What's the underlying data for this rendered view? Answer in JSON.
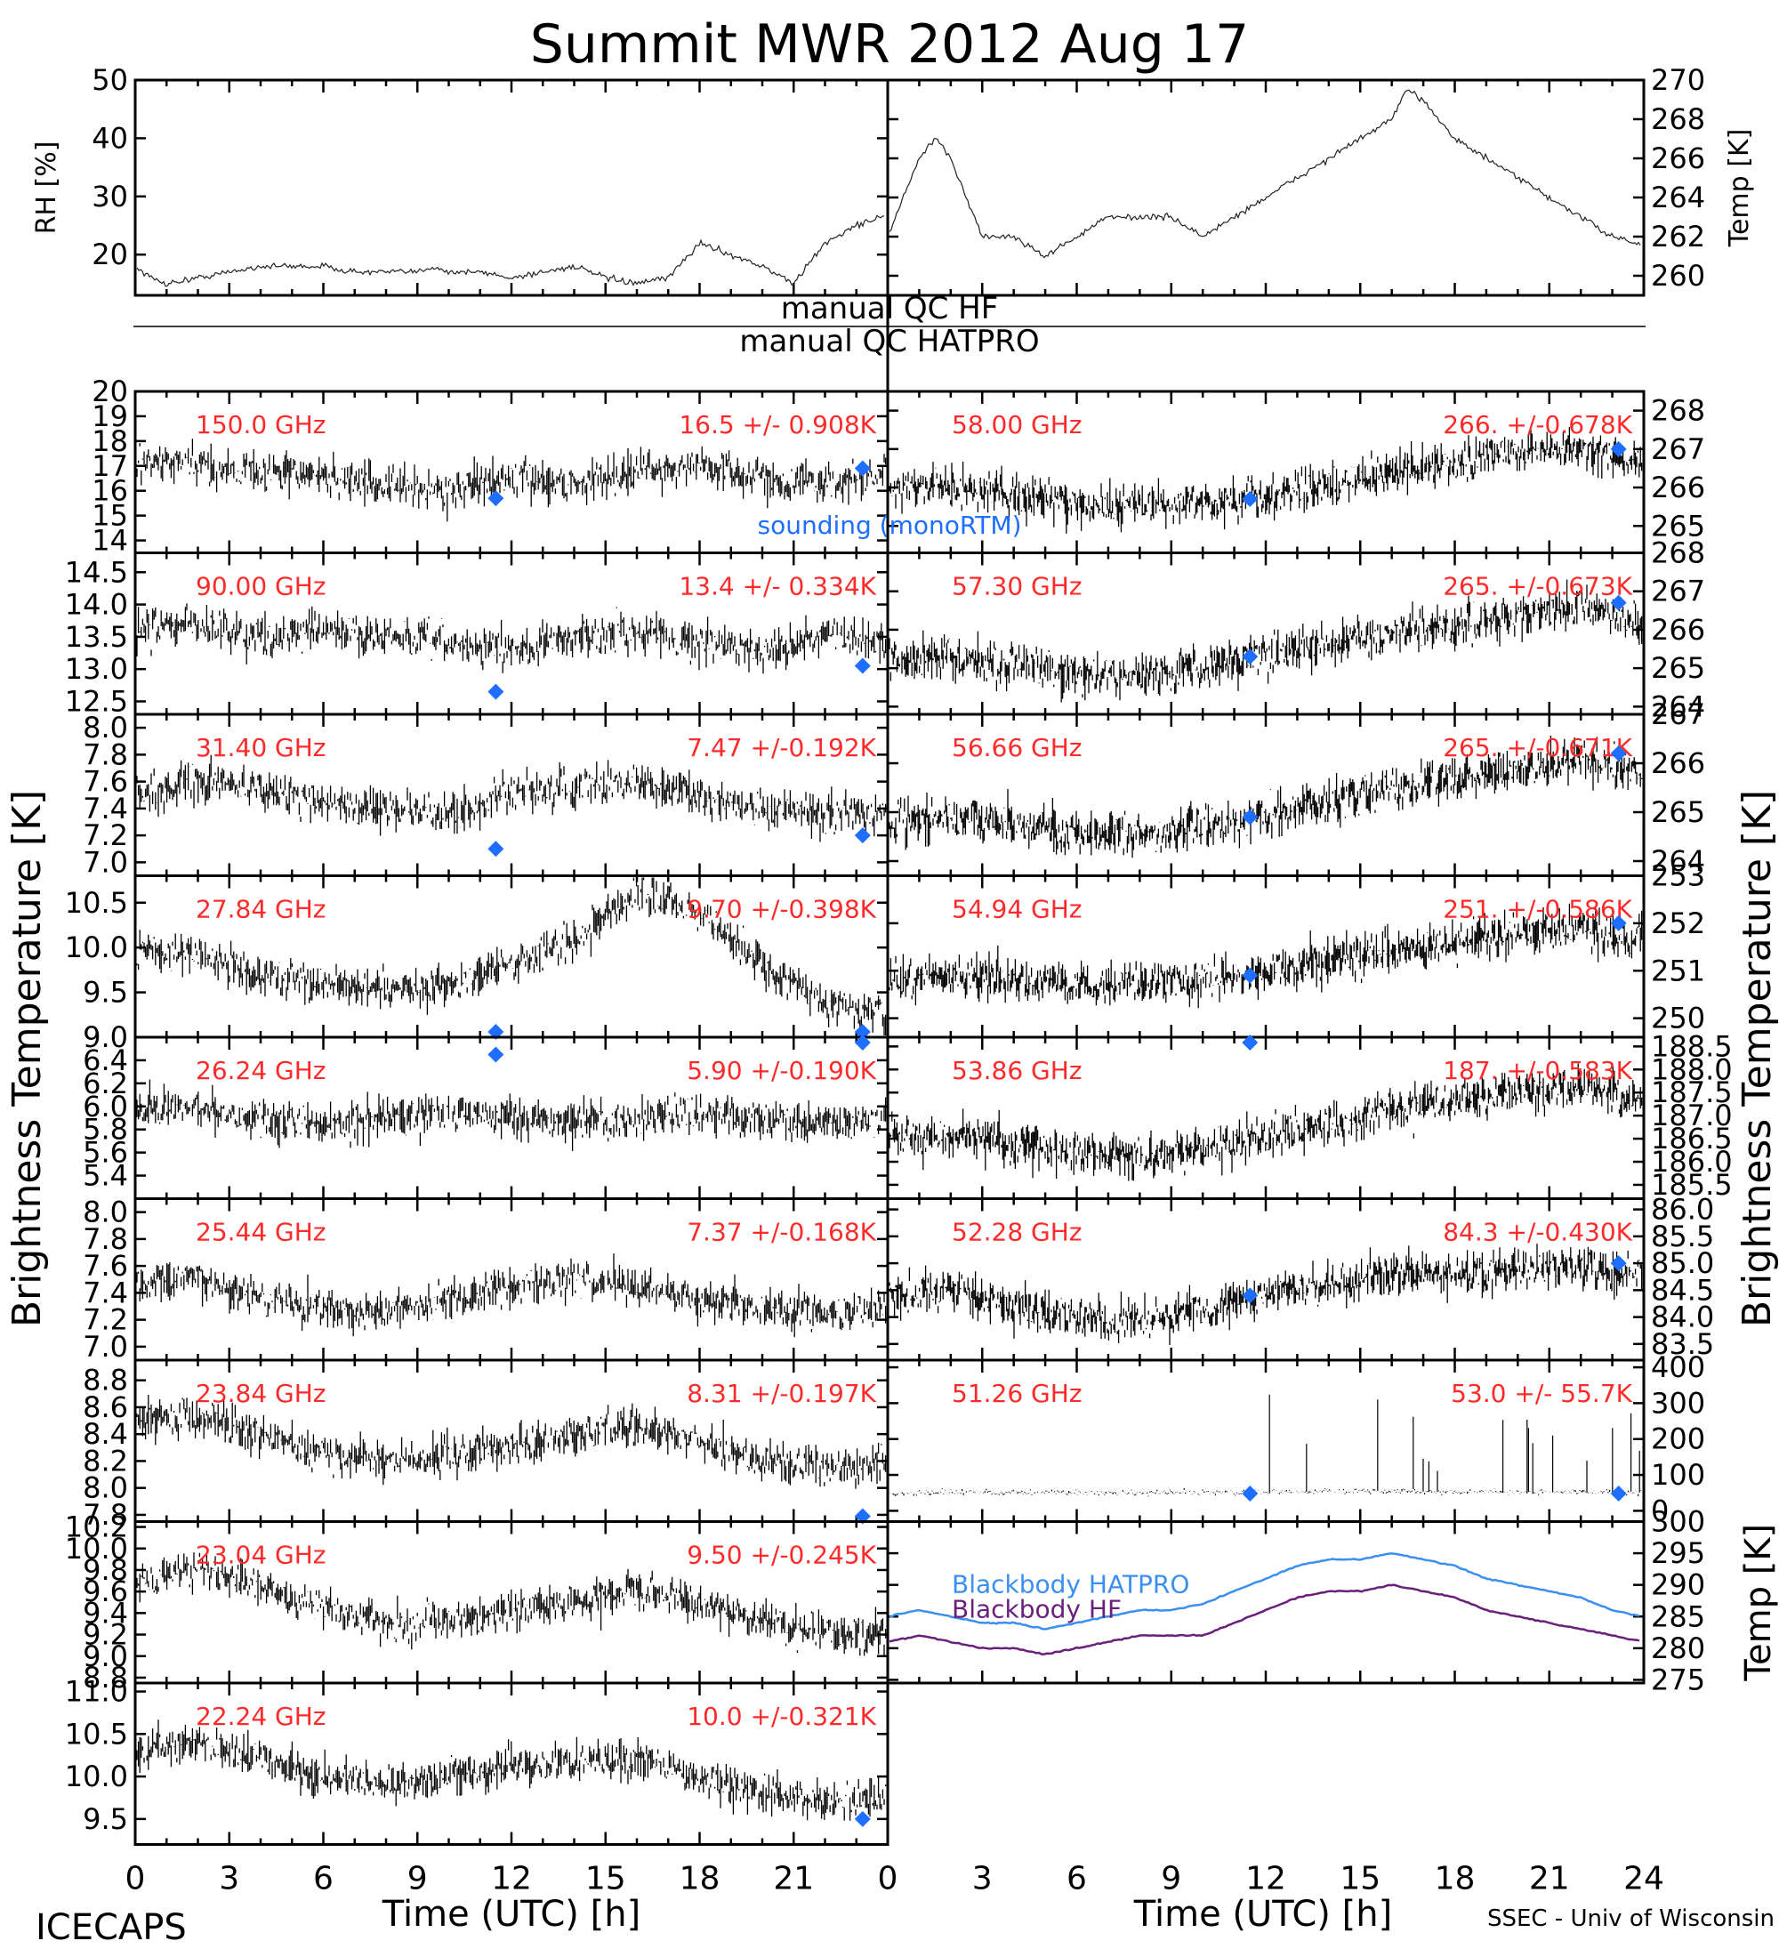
{
  "figure": {
    "title": "Summit MWR 2012 Aug 17",
    "footer_left": "ICECAPS",
    "footer_right": "SSEC - Univ of Wisconsin",
    "xlabel": "Time (UTC) [h]",
    "left_ylabel": "Brightness Temperature [K]",
    "right_ylabel": "Brightness Temperature [K]",
    "qc_hf": "manual QC HF",
    "qc_hatpro": "manual QC HATPRO",
    "sounding_label": "sounding (monoRTM)",
    "colors": {
      "trace": "#000000",
      "label": "#ff2a2a",
      "sounding": "#1e6fff",
      "bb_hatpro": "#3a8ff0",
      "bb_hf": "#6a1f7a"
    }
  },
  "chart_data": [
    {
      "type": "line",
      "panel": "rh",
      "ylabel": "RH [%]",
      "ylim": [
        13,
        50
      ],
      "yticks": [
        "20",
        "30",
        "40",
        "50"
      ],
      "xlim": [
        0,
        24
      ],
      "series": [
        {
          "x": [
            0,
            0.5,
            1,
            2,
            3,
            4,
            5,
            6,
            7,
            8,
            9,
            9.5,
            10,
            11,
            12,
            13,
            14,
            15,
            16,
            17,
            18,
            19,
            20,
            21,
            22,
            23,
            24
          ],
          "values": [
            18,
            16,
            15,
            16,
            17,
            18,
            18,
            18,
            17,
            17,
            17,
            18,
            17,
            17,
            16,
            17,
            18,
            16,
            15,
            16,
            22,
            20,
            18,
            15,
            22,
            25,
            27
          ]
        }
      ]
    },
    {
      "type": "line",
      "panel": "temp",
      "ylabel": "Temp [K]",
      "ylim": [
        259,
        270
      ],
      "yticks": [
        "260",
        "262",
        "264",
        "266",
        "268",
        "270"
      ],
      "xlim": [
        0,
        24
      ],
      "series": [
        {
          "x": [
            0,
            0.5,
            1,
            1.5,
            2,
            3,
            4,
            5,
            6,
            7,
            8,
            9,
            10,
            11,
            12,
            13,
            14,
            15,
            16,
            16.5,
            17,
            18,
            19,
            20,
            21,
            22,
            23,
            24
          ],
          "values": [
            262,
            264,
            266,
            267,
            266,
            262,
            262,
            261,
            262,
            263,
            263,
            263,
            262,
            263,
            264,
            265,
            266,
            267,
            268,
            269.5,
            269,
            267,
            266,
            265,
            264,
            263,
            262,
            261.5
          ]
        }
      ]
    },
    {
      "type": "scatter",
      "side": "left",
      "freq": "150.0 GHz",
      "stats": "16.5 +/- 0.908K",
      "ylim": [
        13.5,
        20
      ],
      "yticks": [
        "14",
        "15",
        "16",
        "17",
        "18",
        "19",
        "20"
      ],
      "points": [
        17.2,
        17.0,
        16.8,
        16.6,
        16.2,
        16.0,
        16.5,
        16.3,
        16.8,
        17.0,
        16.5,
        16.3,
        16.6
      ],
      "sounding": [
        [
          11.5,
          15.7
        ],
        [
          23.2,
          16.9
        ]
      ]
    },
    {
      "type": "scatter",
      "side": "left",
      "freq": "90.00 GHz",
      "stats": "13.4 +/- 0.334K",
      "ylim": [
        12.3,
        14.8
      ],
      "yticks": [
        "12.5",
        "13.0",
        "13.5",
        "14.0",
        "14.5"
      ],
      "points": [
        13.6,
        13.7,
        13.5,
        13.6,
        13.5,
        13.4,
        13.3,
        13.5,
        13.6,
        13.4,
        13.3,
        13.5,
        13.4
      ],
      "sounding": [
        [
          11.5,
          12.65
        ],
        [
          23.2,
          13.05
        ]
      ]
    },
    {
      "type": "scatter",
      "side": "left",
      "freq": "31.40 GHz",
      "stats": "7.47 +/-0.192K",
      "ylim": [
        6.9,
        8.1
      ],
      "yticks": [
        "7.0",
        "7.2",
        "7.4",
        "7.6",
        "7.8",
        "8.0"
      ],
      "points": [
        7.5,
        7.6,
        7.55,
        7.45,
        7.4,
        7.35,
        7.5,
        7.55,
        7.6,
        7.5,
        7.4,
        7.35,
        7.4
      ],
      "sounding": [
        [
          11.5,
          7.1
        ],
        [
          23.2,
          7.2
        ]
      ]
    },
    {
      "type": "scatter",
      "side": "left",
      "freq": "27.84 GHz",
      "stats": "9.70 +/-0.398K",
      "ylim": [
        9.0,
        10.8
      ],
      "yticks": [
        "9.0",
        "9.5",
        "10.0",
        "10.5"
      ],
      "points": [
        10.0,
        9.9,
        9.7,
        9.6,
        9.5,
        9.6,
        9.8,
        10.1,
        10.6,
        10.4,
        9.8,
        9.4,
        9.2
      ],
      "sounding": [
        [
          11.5,
          8.85
        ],
        [
          23.2,
          8.6
        ]
      ]
    },
    {
      "type": "scatter",
      "side": "left",
      "freq": "26.24 GHz",
      "stats": "5.90 +/-0.190K",
      "ylim": [
        5.2,
        6.6
      ],
      "yticks": [
        "5.4",
        "5.6",
        "5.8",
        "6.0",
        "6.2",
        "6.4"
      ],
      "points": [
        5.95,
        6.0,
        5.9,
        5.85,
        5.9,
        5.95,
        5.9,
        5.85,
        5.9,
        5.95,
        5.9,
        5.85,
        5.9
      ],
      "sounding": [
        [
          11.5,
          6.45
        ],
        [
          23.2,
          6.6
        ]
      ]
    },
    {
      "type": "scatter",
      "side": "left",
      "freq": "25.44 GHz",
      "stats": "7.37 +/-0.168K",
      "ylim": [
        6.9,
        8.1
      ],
      "yticks": [
        "7.0",
        "7.2",
        "7.4",
        "7.6",
        "7.8",
        "8.0"
      ],
      "points": [
        7.45,
        7.5,
        7.35,
        7.3,
        7.25,
        7.35,
        7.45,
        7.5,
        7.45,
        7.35,
        7.3,
        7.25,
        7.3
      ],
      "sounding": []
    },
    {
      "type": "scatter",
      "side": "left",
      "freq": "23.84 GHz",
      "stats": "8.31 +/-0.197K",
      "ylim": [
        7.75,
        8.95
      ],
      "yticks": [
        "7.8",
        "8.0",
        "8.2",
        "8.4",
        "8.6",
        "8.8"
      ],
      "points": [
        8.5,
        8.55,
        8.4,
        8.25,
        8.2,
        8.25,
        8.3,
        8.4,
        8.45,
        8.35,
        8.2,
        8.15,
        8.2
      ],
      "sounding": [
        [
          23.2,
          7.78
        ]
      ]
    },
    {
      "type": "scatter",
      "side": "left",
      "freq": "23.04 GHz",
      "stats": "9.50 +/-0.245K",
      "ylim": [
        8.75,
        10.25
      ],
      "yticks": [
        "8.8",
        "9.0",
        "9.2",
        "9.4",
        "9.6",
        "9.8",
        "10.0",
        "10.2"
      ],
      "points": [
        9.7,
        9.8,
        9.65,
        9.45,
        9.3,
        9.35,
        9.4,
        9.5,
        9.6,
        9.5,
        9.35,
        9.2,
        9.2
      ],
      "sounding": []
    },
    {
      "type": "scatter",
      "side": "left",
      "freq": "22.24 GHz",
      "stats": "10.0 +/-0.321K",
      "ylim": [
        9.2,
        11.1
      ],
      "yticks": [
        "9.5",
        "10.0",
        "10.5",
        "11.0"
      ],
      "points": [
        10.3,
        10.4,
        10.2,
        10.0,
        9.9,
        10.0,
        10.1,
        10.2,
        10.2,
        10.0,
        9.8,
        9.7,
        9.7
      ],
      "sounding": [
        [
          23.2,
          9.5
        ]
      ]
    },
    {
      "type": "scatter",
      "side": "right",
      "freq": "58.00 GHz",
      "stats": "266. +/-0.678K",
      "ylim": [
        264.3,
        268.5
      ],
      "yticks": [
        "265",
        "266",
        "267",
        "268"
      ],
      "points": [
        265.9,
        266.0,
        265.8,
        265.6,
        265.5,
        265.6,
        265.8,
        266.1,
        266.4,
        266.6,
        266.9,
        267.0,
        266.7
      ],
      "sounding": [
        [
          11.5,
          265.7
        ],
        [
          23.2,
          267.0
        ]
      ]
    },
    {
      "type": "scatter",
      "side": "right",
      "freq": "57.30 GHz",
      "stats": "265. +/-0.673K",
      "ylim": [
        263.8,
        268
      ],
      "yticks": [
        "264",
        "265",
        "266",
        "267",
        "268"
      ],
      "points": [
        265.2,
        265.3,
        265.1,
        264.9,
        264.8,
        265.0,
        265.3,
        265.6,
        265.9,
        266.1,
        266.4,
        266.6,
        266.2
      ],
      "sounding": [
        [
          11.5,
          265.3
        ],
        [
          23.2,
          266.7
        ]
      ]
    },
    {
      "type": "scatter",
      "side": "right",
      "freq": "56.66 GHz",
      "stats": "265. +/-0.671K",
      "ylim": [
        263.7,
        267
      ],
      "yticks": [
        "264",
        "265",
        "266",
        "267"
      ],
      "points": [
        264.8,
        264.9,
        264.8,
        264.6,
        264.5,
        264.7,
        264.9,
        265.2,
        265.5,
        265.7,
        265.9,
        266.1,
        265.8
      ],
      "sounding": [
        [
          11.5,
          264.9
        ],
        [
          23.2,
          266.2
        ]
      ]
    },
    {
      "type": "scatter",
      "side": "right",
      "freq": "54.94 GHz",
      "stats": "251. +/-0.586K",
      "ylim": [
        249.6,
        253
      ],
      "yticks": [
        "250",
        "251",
        "252",
        "253"
      ],
      "points": [
        250.8,
        250.9,
        250.8,
        250.7,
        250.7,
        250.8,
        251.0,
        251.2,
        251.4,
        251.6,
        251.8,
        251.9,
        251.7
      ],
      "sounding": [
        [
          11.5,
          250.9
        ],
        [
          23.2,
          252.0
        ]
      ]
    },
    {
      "type": "scatter",
      "side": "right",
      "freq": "53.86 GHz",
      "stats": "187. +/-0.583K",
      "ylim": [
        185.2,
        188.7
      ],
      "yticks": [
        "185.5",
        "186.0",
        "186.5",
        "187.0",
        "187.5",
        "188.0",
        "188.5"
      ],
      "points": [
        186.5,
        186.6,
        186.4,
        186.2,
        186.1,
        186.3,
        186.6,
        186.8,
        187.1,
        187.3,
        187.5,
        187.6,
        187.3
      ],
      "sounding": [
        [
          11.5,
          188.7
        ]
      ]
    },
    {
      "type": "scatter",
      "side": "right",
      "freq": "52.28 GHz",
      "stats": "84.3 +/-0.430K",
      "ylim": [
        83.2,
        86.2
      ],
      "yticks": [
        "83.5",
        "84.0",
        "84.5",
        "85.0",
        "85.5",
        "86.0"
      ],
      "points": [
        84.4,
        84.5,
        84.2,
        84.0,
        83.9,
        84.1,
        84.4,
        84.6,
        84.8,
        84.8,
        84.9,
        84.9,
        84.8
      ],
      "sounding": [
        [
          11.5,
          84.4
        ],
        [
          23.2,
          85.0
        ]
      ]
    },
    {
      "type": "scatter",
      "side": "right",
      "freq": "51.26 GHz",
      "stats": "53.0 +/- 55.7K",
      "ylim": [
        -30,
        420
      ],
      "yticks": [
        "0",
        "100",
        "200",
        "300",
        "400"
      ],
      "points": [
        50,
        52,
        50,
        51,
        50,
        52,
        53,
        55,
        54,
        53,
        52,
        51,
        50
      ],
      "sounding": [
        [
          11.5,
          48
        ],
        [
          23.2,
          48
        ]
      ]
    },
    {
      "type": "line",
      "side": "right",
      "panel": "blackbody",
      "ylabel": "Temp [K]",
      "ylim": [
        274.5,
        300
      ],
      "yticks": [
        "275",
        "280",
        "285",
        "290",
        "295",
        "300"
      ],
      "legend": [
        "Blackbody HATPRO",
        "Blackbody HF"
      ],
      "series": [
        {
          "name": "Blackbody HATPRO",
          "x": [
            0,
            1,
            2,
            3,
            4,
            5,
            6,
            7,
            8,
            9,
            10,
            11,
            12,
            13,
            14,
            15,
            16,
            17,
            18,
            19,
            20,
            21,
            22,
            23,
            24
          ],
          "values": [
            285,
            286,
            285,
            284,
            284,
            283,
            284,
            285,
            286,
            286,
            287,
            289,
            291,
            293,
            294,
            294,
            295,
            294,
            293,
            291,
            290,
            289,
            288,
            286,
            285
          ]
        },
        {
          "name": "Blackbody HF",
          "x": [
            0,
            1,
            2,
            3,
            4,
            5,
            6,
            7,
            8,
            9,
            10,
            11,
            12,
            13,
            14,
            15,
            16,
            17,
            18,
            19,
            20,
            21,
            22,
            23,
            24
          ],
          "values": [
            281,
            282,
            281,
            280,
            280,
            279,
            280,
            281,
            282,
            282,
            282,
            284,
            286,
            288,
            289,
            289,
            290,
            289,
            288,
            286,
            285,
            284,
            283,
            282,
            281
          ]
        }
      ]
    }
  ],
  "xaxis": {
    "ticks_left": [
      "0",
      "3",
      "6",
      "9",
      "12",
      "15",
      "18",
      "21"
    ],
    "ticks_right": [
      "0",
      "3",
      "6",
      "9",
      "12",
      "15",
      "18",
      "21",
      "24"
    ]
  }
}
